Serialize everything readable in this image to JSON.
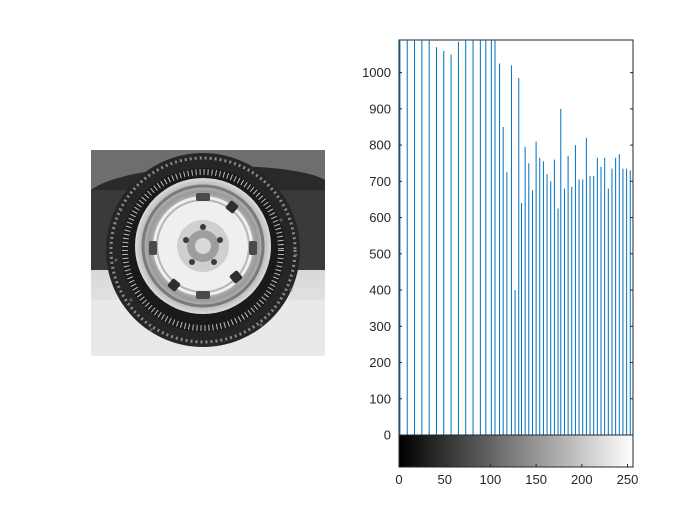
{
  "figure": {
    "image_panel": {
      "description_icon": "tire-photo-icon"
    },
    "colors": {
      "stem": "#0072BD",
      "axis": "#262626",
      "background": "#ffffff"
    }
  },
  "chart_data": {
    "type": "bar",
    "subtype": "stem-histogram",
    "title": "",
    "xlabel": "",
    "ylabel": "",
    "xlim": [
      0,
      256
    ],
    "ylim": [
      -90,
      1090
    ],
    "y_ticks": [
      0,
      100,
      200,
      300,
      400,
      500,
      600,
      700,
      800,
      900,
      1000
    ],
    "x_ticks": [
      0,
      50,
      100,
      150,
      200,
      250
    ],
    "grid": false,
    "legend": "none",
    "colorbar": {
      "range": [
        0,
        255
      ],
      "colormap": "gray"
    },
    "bins_x": [
      1,
      9,
      17,
      25,
      33,
      41,
      49,
      57,
      65,
      73,
      81,
      89,
      95,
      101,
      105,
      110,
      114,
      118,
      123,
      127,
      131,
      134,
      138,
      142,
      146,
      150,
      154,
      158,
      162,
      166,
      170,
      174,
      177,
      181,
      185,
      189,
      193,
      197,
      201,
      205,
      209,
      213,
      217,
      221,
      225,
      229,
      233,
      237,
      241,
      245,
      249,
      253
    ],
    "counts": [
      1090,
      1090,
      1090,
      1090,
      1090,
      1070,
      1060,
      1050,
      1085,
      1090,
      1090,
      1090,
      1090,
      1090,
      1090,
      1025,
      850,
      725,
      1020,
      400,
      985,
      640,
      795,
      750,
      675,
      810,
      765,
      755,
      720,
      700,
      760,
      625,
      900,
      680,
      770,
      685,
      800,
      705,
      705,
      820,
      715,
      715,
      765,
      740,
      765,
      680,
      735,
      765,
      775,
      735,
      735,
      730
    ]
  }
}
